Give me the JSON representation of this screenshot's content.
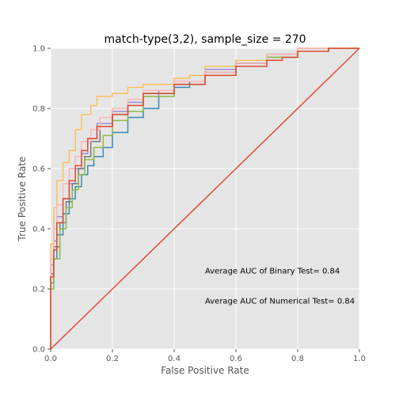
{
  "chart_data": {
    "type": "line",
    "title": "match-type(3,2), sample_size =  270",
    "xlabel": "False Positive Rate",
    "ylabel": "True Positive Rate",
    "xlim": [
      0,
      1
    ],
    "ylim": [
      0,
      1
    ],
    "xticks": [
      "0.0",
      "0.2",
      "0.4",
      "0.6",
      "0.8",
      "1.0"
    ],
    "yticks": [
      "0.0",
      "0.2",
      "0.4",
      "0.6",
      "0.8",
      "1.0"
    ],
    "grid": true,
    "background": "#e5e5e5",
    "annotations": [
      {
        "text": "Average AUC of Binary Test= 0.84",
        "x": 0.5,
        "y": 0.26
      },
      {
        "text": "Average AUC of Numerical Test= 0.84",
        "x": 0.5,
        "y": 0.16
      }
    ],
    "diagonal": {
      "color": "#e24a33",
      "points": [
        [
          0,
          0
        ],
        [
          1,
          1
        ]
      ]
    },
    "series": [
      {
        "color": "#348abd",
        "points": [
          [
            0,
            0
          ],
          [
            0.01,
            0.22
          ],
          [
            0.02,
            0.3
          ],
          [
            0.04,
            0.38
          ],
          [
            0.06,
            0.45
          ],
          [
            0.08,
            0.5
          ],
          [
            0.1,
            0.54
          ],
          [
            0.12,
            0.58
          ],
          [
            0.14,
            0.61
          ],
          [
            0.17,
            0.64
          ],
          [
            0.2,
            0.67
          ],
          [
            0.25,
            0.72
          ],
          [
            0.3,
            0.77
          ],
          [
            0.35,
            0.8
          ],
          [
            0.4,
            0.84
          ],
          [
            0.45,
            0.87
          ],
          [
            0.5,
            0.89
          ],
          [
            0.6,
            0.92
          ],
          [
            0.7,
            0.95
          ],
          [
            0.8,
            0.98
          ],
          [
            0.9,
            1.0
          ],
          [
            1,
            1
          ]
        ]
      },
      {
        "color": "#988ed5",
        "points": [
          [
            0,
            0
          ],
          [
            0.01,
            0.28
          ],
          [
            0.02,
            0.36
          ],
          [
            0.04,
            0.44
          ],
          [
            0.06,
            0.5
          ],
          [
            0.08,
            0.55
          ],
          [
            0.1,
            0.6
          ],
          [
            0.12,
            0.65
          ],
          [
            0.15,
            0.7
          ],
          [
            0.2,
            0.75
          ],
          [
            0.25,
            0.79
          ],
          [
            0.3,
            0.82
          ],
          [
            0.35,
            0.84
          ],
          [
            0.4,
            0.86
          ],
          [
            0.5,
            0.89
          ],
          [
            0.6,
            0.93
          ],
          [
            0.7,
            0.96
          ],
          [
            0.8,
            0.98
          ],
          [
            0.9,
            0.99
          ],
          [
            1,
            1
          ]
        ]
      },
      {
        "color": "#777777",
        "points": [
          [
            0,
            0
          ],
          [
            0.01,
            0.25
          ],
          [
            0.03,
            0.34
          ],
          [
            0.05,
            0.42
          ],
          [
            0.07,
            0.49
          ],
          [
            0.09,
            0.55
          ],
          [
            0.11,
            0.6
          ],
          [
            0.13,
            0.64
          ],
          [
            0.16,
            0.69
          ],
          [
            0.2,
            0.74
          ],
          [
            0.25,
            0.78
          ],
          [
            0.3,
            0.81
          ],
          [
            0.4,
            0.85
          ],
          [
            0.5,
            0.88
          ],
          [
            0.6,
            0.92
          ],
          [
            0.7,
            0.95
          ],
          [
            0.8,
            0.97
          ],
          [
            0.9,
            0.99
          ],
          [
            1,
            1
          ]
        ]
      },
      {
        "color": "#fbc15e",
        "points": [
          [
            0,
            0
          ],
          [
            0.01,
            0.35
          ],
          [
            0.02,
            0.47
          ],
          [
            0.04,
            0.56
          ],
          [
            0.06,
            0.62
          ],
          [
            0.08,
            0.66
          ],
          [
            0.1,
            0.73
          ],
          [
            0.13,
            0.78
          ],
          [
            0.15,
            0.81
          ],
          [
            0.2,
            0.84
          ],
          [
            0.25,
            0.85
          ],
          [
            0.3,
            0.87
          ],
          [
            0.4,
            0.88
          ],
          [
            0.45,
            0.9
          ],
          [
            0.5,
            0.91
          ],
          [
            0.6,
            0.94
          ],
          [
            0.7,
            0.96
          ],
          [
            0.8,
            0.98
          ],
          [
            0.9,
            1.0
          ],
          [
            1,
            1
          ]
        ]
      },
      {
        "color": "#8eba42",
        "points": [
          [
            0,
            0
          ],
          [
            0.01,
            0.2
          ],
          [
            0.03,
            0.3
          ],
          [
            0.05,
            0.4
          ],
          [
            0.07,
            0.47
          ],
          [
            0.09,
            0.53
          ],
          [
            0.11,
            0.58
          ],
          [
            0.14,
            0.63
          ],
          [
            0.17,
            0.67
          ],
          [
            0.2,
            0.71
          ],
          [
            0.25,
            0.76
          ],
          [
            0.3,
            0.79
          ],
          [
            0.4,
            0.84
          ],
          [
            0.5,
            0.88
          ],
          [
            0.6,
            0.91
          ],
          [
            0.7,
            0.94
          ],
          [
            0.8,
            0.97
          ],
          [
            0.9,
            0.99
          ],
          [
            1,
            1
          ]
        ]
      },
      {
        "color": "#ffb5b8",
        "points": [
          [
            0,
            0
          ],
          [
            0.01,
            0.3
          ],
          [
            0.02,
            0.4
          ],
          [
            0.04,
            0.48
          ],
          [
            0.06,
            0.55
          ],
          [
            0.08,
            0.6
          ],
          [
            0.1,
            0.64
          ],
          [
            0.13,
            0.69
          ],
          [
            0.16,
            0.73
          ],
          [
            0.2,
            0.77
          ],
          [
            0.25,
            0.8
          ],
          [
            0.3,
            0.83
          ],
          [
            0.4,
            0.86
          ],
          [
            0.5,
            0.89
          ],
          [
            0.6,
            0.92
          ],
          [
            0.7,
            0.95
          ],
          [
            0.8,
            0.98
          ],
          [
            0.93,
            1.0
          ],
          [
            1,
            1
          ]
        ]
      },
      {
        "color": "#e24a33",
        "points": [
          [
            0,
            0
          ],
          [
            0.01,
            0.24
          ],
          [
            0.02,
            0.33
          ],
          [
            0.04,
            0.42
          ],
          [
            0.06,
            0.5
          ],
          [
            0.08,
            0.56
          ],
          [
            0.1,
            0.61
          ],
          [
            0.12,
            0.66
          ],
          [
            0.15,
            0.7
          ],
          [
            0.2,
            0.74
          ],
          [
            0.25,
            0.78
          ],
          [
            0.3,
            0.81
          ],
          [
            0.4,
            0.85
          ],
          [
            0.5,
            0.88
          ],
          [
            0.6,
            0.91
          ],
          [
            0.7,
            0.94
          ],
          [
            0.75,
            0.96
          ],
          [
            0.8,
            0.97
          ],
          [
            0.9,
            0.99
          ],
          [
            1,
            1
          ]
        ]
      }
    ]
  }
}
